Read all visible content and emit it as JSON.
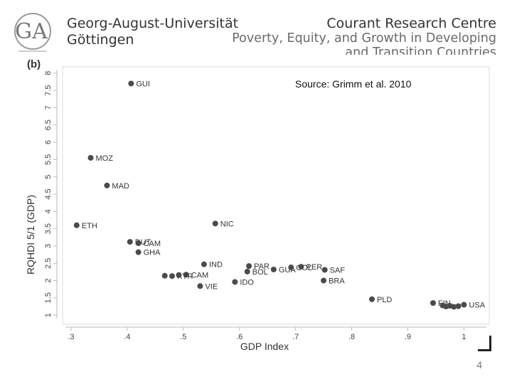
{
  "header": {
    "university_lines": [
      "Georg-August-Universität",
      "Göttingen"
    ],
    "centre_lines": [
      "Courant Research Centre",
      "Poverty, Equity, and Growth in Developing",
      "and Transition Countries"
    ],
    "logo_label": "GA"
  },
  "page_number": "4",
  "colors": {
    "marker": "#4a4a4a",
    "text": "#333333",
    "axis": "#bbbbbb"
  },
  "chart_data": {
    "type": "scatter",
    "panel_label": "(b)",
    "source": "Source: Grimm et al. 2010",
    "xlabel": "GDP Index",
    "ylabel": "RQHDI 5/1 (GDP)",
    "xlim": [
      0.29,
      1.04
    ],
    "ylim": [
      0.9,
      8.1
    ],
    "x_ticks": [
      0.3,
      0.4,
      0.5,
      0.6,
      0.7,
      0.8,
      0.9,
      1
    ],
    "x_tick_labels": [
      ".3",
      ".4",
      ".5",
      ".6",
      ".7",
      ".8",
      ".9",
      "1"
    ],
    "y_ticks": [
      1,
      1.5,
      2,
      2.5,
      3,
      3.5,
      4,
      4.5,
      5,
      5.5,
      6,
      6.5,
      7,
      7.5,
      8
    ],
    "y_tick_labels": [
      "1",
      "1.5",
      "2",
      "2.5",
      "3",
      "3.5",
      "4",
      "4.5",
      "5",
      "5.5",
      "6",
      "6.5",
      "7",
      "7.5",
      "8"
    ],
    "grid": false,
    "points": [
      {
        "label": "GUI",
        "x": 0.407,
        "y": 7.7
      },
      {
        "label": "MOZ",
        "x": 0.335,
        "y": 5.55
      },
      {
        "label": "MAD",
        "x": 0.364,
        "y": 4.75
      },
      {
        "label": "ETH",
        "x": 0.31,
        "y": 3.6
      },
      {
        "label": "NIC",
        "x": 0.557,
        "y": 3.65
      },
      {
        "label": "DUT",
        "x": 0.405,
        "y": 3.12
      },
      {
        "label": "CAM",
        "x": 0.42,
        "y": 3.08
      },
      {
        "label": "GHA",
        "x": 0.42,
        "y": 2.82
      },
      {
        "label": "IND",
        "x": 0.537,
        "y": 2.47
      },
      {
        "label": "PAR",
        "x": 0.617,
        "y": 2.42
      },
      {
        "label": "BOL",
        "x": 0.614,
        "y": 2.26
      },
      {
        "label": "GUA",
        "x": 0.661,
        "y": 2.32
      },
      {
        "label": "COL",
        "x": 0.692,
        "y": 2.38
      },
      {
        "label": "PER",
        "x": 0.71,
        "y": 2.4
      },
      {
        "label": "SAF",
        "x": 0.752,
        "y": 2.31
      },
      {
        "label": "CAM",
        "x": 0.505,
        "y": 2.17
      },
      {
        "label": "KYR",
        "x": 0.48,
        "y": 2.13
      },
      {
        "label": "",
        "x": 0.467,
        "y": 2.14
      },
      {
        "label": "",
        "x": 0.492,
        "y": 2.16
      },
      {
        "label": "IDO",
        "x": 0.592,
        "y": 1.96
      },
      {
        "label": "BRA",
        "x": 0.75,
        "y": 2.0
      },
      {
        "label": "VIE",
        "x": 0.53,
        "y": 1.84
      },
      {
        "label": "PLD",
        "x": 0.836,
        "y": 1.46
      },
      {
        "label": "FIN",
        "x": 0.945,
        "y": 1.35
      },
      {
        "label": "",
        "x": 0.962,
        "y": 1.28
      },
      {
        "label": "",
        "x": 0.968,
        "y": 1.25
      },
      {
        "label": "",
        "x": 0.975,
        "y": 1.27
      },
      {
        "label": "",
        "x": 0.982,
        "y": 1.24
      },
      {
        "label": "",
        "x": 0.99,
        "y": 1.26
      },
      {
        "label": "USA",
        "x": 1.0,
        "y": 1.3
      }
    ]
  }
}
